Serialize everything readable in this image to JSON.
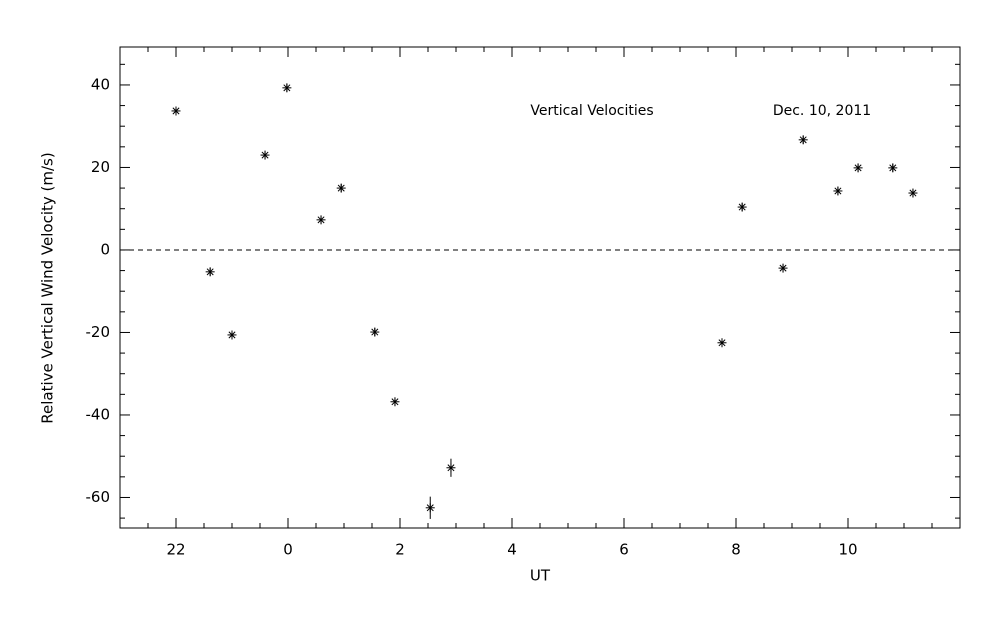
{
  "chart_data": {
    "type": "scatter",
    "xlabel": "UT",
    "ylabel": "Relative Vertical Wind Velocity (m/s)",
    "annotations": [
      "Vertical Velocities",
      "Dec. 10, 2011"
    ],
    "color": "#dd0000",
    "xlim": [
      -3,
      12
    ],
    "ylim": [
      -67.4,
      49.2
    ],
    "xticks": [
      {
        "value": -2,
        "label": "22"
      },
      0,
      2,
      4,
      6,
      8,
      10
    ],
    "yticks": [
      -60,
      -40,
      -20,
      0,
      20,
      40
    ],
    "xminorticks": [
      -2.5,
      -1.5,
      -1,
      -0.5,
      0.5,
      1,
      1.5,
      2.5,
      3,
      3.5,
      4.5,
      5,
      5.5,
      6.5,
      7,
      7.5,
      8.5,
      9,
      9.5,
      10.5,
      11,
      11.5
    ],
    "yminorticks": [
      -65,
      -55,
      -50,
      -45,
      -35,
      -30,
      -25,
      -15,
      -10,
      -5,
      5,
      10,
      15,
      25,
      30,
      35,
      45
    ],
    "hline": 0,
    "x": [
      -2.0,
      -1.39,
      -1.0,
      -0.41,
      -0.02,
      0.59,
      0.95,
      1.55,
      1.91,
      2.54,
      2.91,
      7.75,
      8.11,
      8.84,
      9.2,
      9.82,
      10.18,
      10.8,
      11.16
    ],
    "values": [
      33.7,
      -5.3,
      -20.6,
      23.0,
      39.3,
      7.3,
      15.0,
      -19.9,
      -36.8,
      -62.5,
      -52.8,
      -22.5,
      10.4,
      -4.4,
      26.7,
      14.3,
      19.9,
      19.9,
      13.8
    ],
    "errors": [
      1,
      1,
      1,
      1,
      1,
      1,
      1,
      1,
      1,
      2.7,
      2.2,
      1,
      1,
      1,
      1,
      1,
      1,
      1,
      1
    ]
  }
}
